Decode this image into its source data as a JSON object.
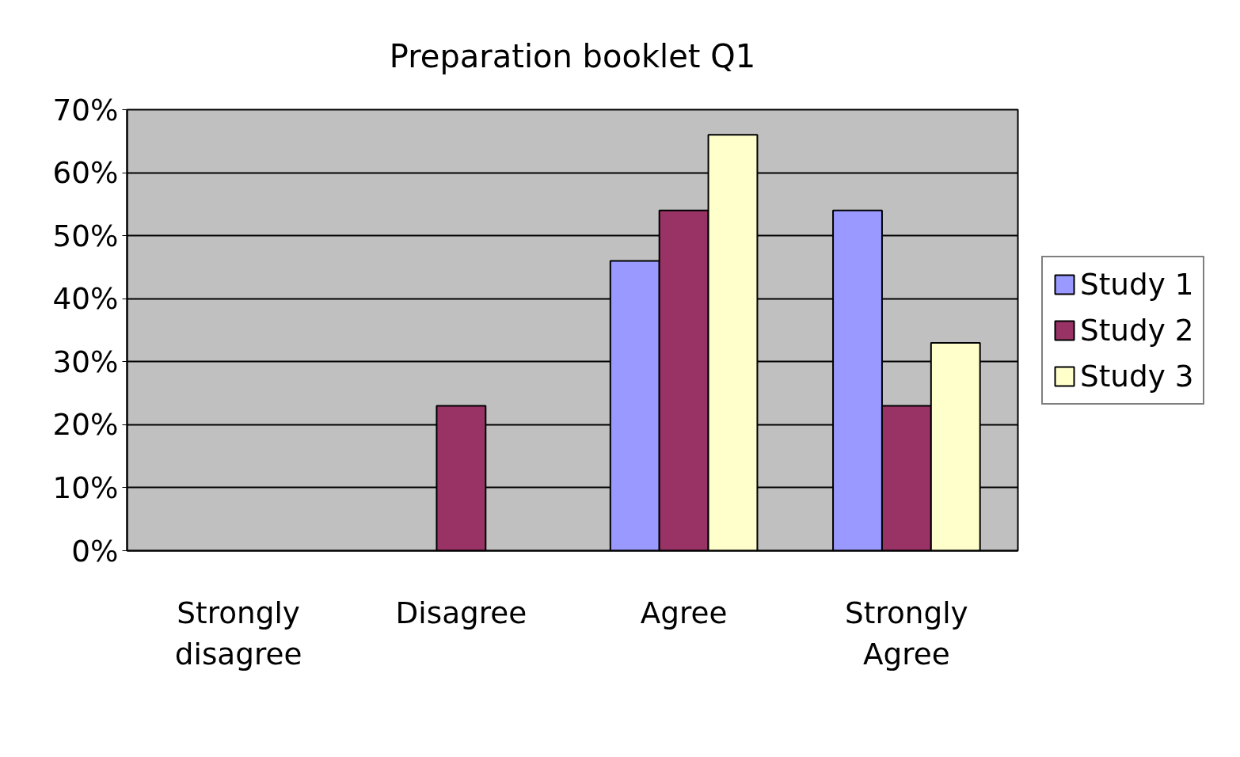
{
  "chart_data": {
    "type": "bar",
    "title": "Preparation booklet Q1",
    "categories": [
      "Strongly\ndisagree",
      "Disagree",
      "Agree",
      "Strongly\nAgree"
    ],
    "series": [
      {
        "name": "Study 1",
        "color": "#9999ff",
        "values": [
          null,
          null,
          46,
          54
        ]
      },
      {
        "name": "Study 2",
        "color": "#993366",
        "values": [
          null,
          23,
          54,
          23
        ]
      },
      {
        "name": "Study 3",
        "color": "#ffffcc",
        "values": [
          null,
          null,
          66,
          33
        ]
      }
    ],
    "ylim": [
      0,
      70
    ],
    "yticks": [
      {
        "value": 0,
        "label": "0%"
      },
      {
        "value": 10,
        "label": "10%"
      },
      {
        "value": 20,
        "label": "20%"
      },
      {
        "value": 30,
        "label": "30%"
      },
      {
        "value": 40,
        "label": "40%"
      },
      {
        "value": 50,
        "label": "50%"
      },
      {
        "value": 60,
        "label": "60%"
      },
      {
        "value": 70,
        "label": "70%"
      }
    ],
    "grid": "y",
    "legend": "right"
  }
}
